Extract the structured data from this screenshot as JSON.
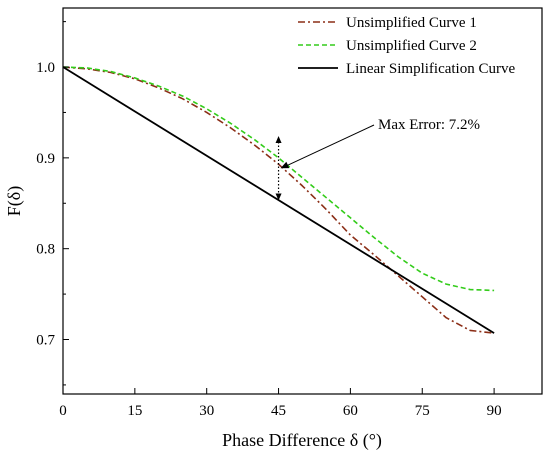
{
  "chart_data": {
    "type": "line",
    "xlabel": "Phase Difference δ (°)",
    "ylabel": "F(δ)",
    "xlim": [
      0,
      100
    ],
    "ylim": [
      0.64,
      1.065
    ],
    "xticks": [
      0,
      15,
      30,
      45,
      60,
      75,
      90
    ],
    "yticks": [
      0.7,
      0.8,
      0.9,
      1.0
    ],
    "ytick_labels": [
      "0.7",
      "0.8",
      "0.9",
      "1.0"
    ],
    "grid": false,
    "legend_position": "top-right",
    "series": [
      {
        "name": "Unsimplified Curve 1",
        "color": "#8b2e17",
        "style": "dash-dot",
        "x": [
          0,
          5,
          10,
          15,
          20,
          25,
          30,
          35,
          40,
          45,
          50,
          55,
          60,
          65,
          70,
          75,
          80,
          85,
          90
        ],
        "y": [
          1.0,
          0.998,
          0.994,
          0.987,
          0.977,
          0.965,
          0.95,
          0.933,
          0.914,
          0.893,
          0.869,
          0.843,
          0.815,
          0.793,
          0.77,
          0.747,
          0.724,
          0.71,
          0.707
        ]
      },
      {
        "name": "Unsimplified Curve 2",
        "color": "#33cc1a",
        "style": "dashed",
        "x": [
          0,
          5,
          10,
          15,
          20,
          25,
          30,
          35,
          40,
          45,
          50,
          55,
          60,
          65,
          70,
          75,
          80,
          85,
          90
        ],
        "y": [
          1.0,
          0.999,
          0.995,
          0.988,
          0.979,
          0.968,
          0.954,
          0.938,
          0.92,
          0.9,
          0.878,
          0.856,
          0.834,
          0.812,
          0.791,
          0.773,
          0.761,
          0.755,
          0.754
        ]
      },
      {
        "name": "Linear Simplification Curve",
        "color": "#000000",
        "style": "solid",
        "x": [
          0,
          90
        ],
        "y": [
          1.0,
          0.707
        ]
      }
    ],
    "annotations": [
      {
        "text": "Max Error: 7.2%",
        "x": 45,
        "y_top": 0.924,
        "y_bottom": 0.853
      }
    ]
  }
}
